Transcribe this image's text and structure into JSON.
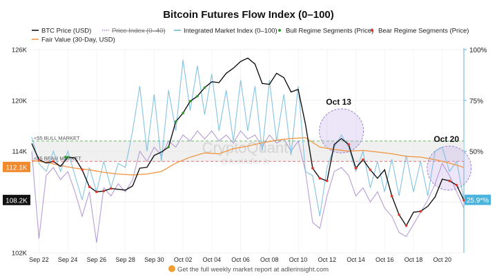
{
  "chart_data": {
    "type": "line",
    "title": "Bitcoin Futures Flow Index (0–100)",
    "legend": [
      {
        "key": "btc",
        "label": "BTC Price (USD)",
        "color": "#111111",
        "style": "line"
      },
      {
        "key": "pidx",
        "label": "Price Index (0–40)",
        "color": "#9b7fc7",
        "style": "dotted",
        "strike": true
      },
      {
        "key": "imi",
        "label": "Integrated Market Index (0–100)",
        "color": "#6fb6d9",
        "style": "line"
      },
      {
        "key": "bull",
        "label": "Bull Regime Segments (Price)",
        "color": "#2e9a2e",
        "style": "dot"
      },
      {
        "key": "bear",
        "label": "Bear Regime Segments (Price)",
        "color": "#e0342c",
        "style": "dot"
      },
      {
        "key": "fv",
        "label": "Fair Value (30-Day, USD)",
        "color": "#f09a4a",
        "style": "line"
      }
    ],
    "x_ticks": [
      "Sep 22",
      "Sep 24",
      "Sep 26",
      "Sep 28",
      "Sep 30",
      "Oct 02",
      "Oct 04",
      "Oct 06",
      "Oct 08",
      "Oct 10",
      "Oct 12",
      "Oct 14",
      "Oct 16",
      "Oct 18",
      "Oct 20"
    ],
    "x_range": [
      "2025-09-21T12:00",
      "2025-10-21T12:00"
    ],
    "y_left": {
      "ticks": [
        102000,
        108000,
        114000,
        120000,
        126000
      ],
      "tick_labels": [
        "102K",
        "108K",
        "114K",
        "120K",
        "126K"
      ],
      "range": [
        102000,
        126000
      ]
    },
    "y_right": {
      "ticks": [
        25,
        50,
        75,
        100
      ],
      "tick_labels": [
        "25%",
        "50%",
        "75%",
        "100%"
      ],
      "range": [
        0,
        100
      ]
    },
    "threshold_lines": [
      {
        "label": "<55 BULL MARKET",
        "value": 55
      },
      {
        "label": "<45 BEAR MARKET",
        "value": 45
      }
    ],
    "annotations": [
      {
        "label": "Oct 13",
        "date": "2025-10-13T00:00"
      },
      {
        "label": "Oct 20",
        "date": "2025-10-20T00:00"
      }
    ],
    "callouts": {
      "fair_value": "112.1K",
      "btc_last": "108.2K",
      "index_last": "25.9*%"
    },
    "watermark": {
      "brand": "CryptoQuant",
      "author": "@AxelAdler Jr"
    },
    "series": {
      "btc": [
        [
          "2025-09-21T12:00",
          114900
        ],
        [
          "2025-09-22T00:00",
          113000
        ],
        [
          "2025-09-22T12:00",
          112600
        ],
        [
          "2025-09-23T00:00",
          112800
        ],
        [
          "2025-09-23T12:00",
          112200
        ],
        [
          "2025-09-24T00:00",
          113300
        ],
        [
          "2025-09-24T12:00",
          113200
        ],
        [
          "2025-09-25T00:00",
          111800
        ],
        [
          "2025-09-25T12:00",
          109800
        ],
        [
          "2025-09-26T00:00",
          109200
        ],
        [
          "2025-09-26T12:00",
          109300
        ],
        [
          "2025-09-27T00:00",
          109600
        ],
        [
          "2025-09-27T12:00",
          109500
        ],
        [
          "2025-09-28T00:00",
          109400
        ],
        [
          "2025-09-28T12:00",
          109900
        ],
        [
          "2025-09-29T00:00",
          112000
        ],
        [
          "2025-09-29T12:00",
          112100
        ],
        [
          "2025-09-30T00:00",
          113500
        ],
        [
          "2025-09-30T12:00",
          113900
        ],
        [
          "2025-10-01T00:00",
          114500
        ],
        [
          "2025-10-01T12:00",
          117500
        ],
        [
          "2025-10-02T00:00",
          118500
        ],
        [
          "2025-10-02T12:00",
          119900
        ],
        [
          "2025-10-03T00:00",
          120500
        ],
        [
          "2025-10-03T12:00",
          121500
        ],
        [
          "2025-10-04T00:00",
          122200
        ],
        [
          "2025-10-04T12:00",
          122100
        ],
        [
          "2025-10-05T00:00",
          123200
        ],
        [
          "2025-10-05T12:00",
          123800
        ],
        [
          "2025-10-06T00:00",
          124600
        ],
        [
          "2025-10-06T12:00",
          125000
        ],
        [
          "2025-10-07T00:00",
          124300
        ],
        [
          "2025-10-07T12:00",
          122000
        ],
        [
          "2025-10-08T00:00",
          121900
        ],
        [
          "2025-10-08T12:00",
          123200
        ],
        [
          "2025-10-09T00:00",
          122700
        ],
        [
          "2025-10-09T12:00",
          121000
        ],
        [
          "2025-10-10T00:00",
          121300
        ],
        [
          "2025-10-10T12:00",
          117200
        ],
        [
          "2025-10-11T00:00",
          112000
        ],
        [
          "2025-10-11T12:00",
          110800
        ],
        [
          "2025-10-12T00:00",
          110500
        ],
        [
          "2025-10-12T12:00",
          114800
        ],
        [
          "2025-10-13T00:00",
          115500
        ],
        [
          "2025-10-13T12:00",
          114800
        ],
        [
          "2025-10-14T00:00",
          112000
        ],
        [
          "2025-10-14T12:00",
          113000
        ],
        [
          "2025-10-15T00:00",
          111800
        ],
        [
          "2025-10-15T12:00",
          110800
        ],
        [
          "2025-10-16T00:00",
          111800
        ],
        [
          "2025-10-16T12:00",
          108700
        ],
        [
          "2025-10-17T00:00",
          106500
        ],
        [
          "2025-10-17T12:00",
          105200
        ],
        [
          "2025-10-18T00:00",
          106800
        ],
        [
          "2025-10-18T12:00",
          106900
        ],
        [
          "2025-10-19T00:00",
          107500
        ],
        [
          "2025-10-19T12:00",
          108600
        ],
        [
          "2025-10-20T00:00",
          110700
        ],
        [
          "2025-10-20T12:00",
          110500
        ],
        [
          "2025-10-21T00:00",
          110000
        ],
        [
          "2025-10-21T12:00",
          108200
        ]
      ],
      "fair_value": [
        [
          "2025-09-21T12:00",
          112900
        ],
        [
          "2025-09-22T12:00",
          112700
        ],
        [
          "2025-09-23T12:00",
          112300
        ],
        [
          "2025-09-24T12:00",
          112000
        ],
        [
          "2025-09-25T12:00",
          111800
        ],
        [
          "2025-09-26T12:00",
          111500
        ],
        [
          "2025-09-27T12:00",
          111300
        ],
        [
          "2025-09-28T12:00",
          111200
        ],
        [
          "2025-09-29T12:00",
          111300
        ],
        [
          "2025-09-30T12:00",
          111600
        ],
        [
          "2025-10-01T12:00",
          112600
        ],
        [
          "2025-10-02T12:00",
          113300
        ],
        [
          "2025-10-03T12:00",
          113800
        ],
        [
          "2025-10-04T12:00",
          113700
        ],
        [
          "2025-10-05T12:00",
          114300
        ],
        [
          "2025-10-06T12:00",
          114600
        ],
        [
          "2025-10-07T12:00",
          115000
        ],
        [
          "2025-10-08T12:00",
          115300
        ],
        [
          "2025-10-09T12:00",
          115500
        ],
        [
          "2025-10-10T12:00",
          115600
        ],
        [
          "2025-10-11T12:00",
          114500
        ],
        [
          "2025-10-12T12:00",
          114200
        ],
        [
          "2025-10-13T12:00",
          114000
        ],
        [
          "2025-10-14T12:00",
          114100
        ],
        [
          "2025-10-15T12:00",
          113900
        ],
        [
          "2025-10-16T12:00",
          113700
        ],
        [
          "2025-10-17T12:00",
          113400
        ],
        [
          "2025-10-18T12:00",
          113300
        ],
        [
          "2025-10-19T12:00",
          113000
        ],
        [
          "2025-10-20T12:00",
          112600
        ],
        [
          "2025-10-21T12:00",
          112100
        ]
      ],
      "imi": [
        [
          "2025-09-21T12:00",
          57
        ],
        [
          "2025-09-22T00:00",
          44
        ],
        [
          "2025-09-22T12:00",
          40
        ],
        [
          "2025-09-23T00:00",
          50
        ],
        [
          "2025-09-23T12:00",
          40
        ],
        [
          "2025-09-24T00:00",
          50
        ],
        [
          "2025-09-24T12:00",
          38
        ],
        [
          "2025-09-25T00:00",
          26
        ],
        [
          "2025-09-25T12:00",
          42
        ],
        [
          "2025-09-26T00:00",
          30
        ],
        [
          "2025-09-26T12:00",
          45
        ],
        [
          "2025-09-27T00:00",
          32
        ],
        [
          "2025-09-27T12:00",
          44
        ],
        [
          "2025-09-28T00:00",
          42
        ],
        [
          "2025-09-28T12:00",
          60
        ],
        [
          "2025-09-29T00:00",
          82
        ],
        [
          "2025-09-29T12:00",
          50
        ],
        [
          "2025-09-30T00:00",
          78
        ],
        [
          "2025-09-30T12:00",
          45
        ],
        [
          "2025-10-01T00:00",
          80
        ],
        [
          "2025-10-01T12:00",
          60
        ],
        [
          "2025-10-02T00:00",
          95
        ],
        [
          "2025-10-02T12:00",
          70
        ],
        [
          "2025-10-03T00:00",
          92
        ],
        [
          "2025-10-03T12:00",
          68
        ],
        [
          "2025-10-04T00:00",
          88
        ],
        [
          "2025-10-04T12:00",
          60
        ],
        [
          "2025-10-05T00:00",
          80
        ],
        [
          "2025-10-05T12:00",
          55
        ],
        [
          "2025-10-06T00:00",
          85
        ],
        [
          "2025-10-06T12:00",
          60
        ],
        [
          "2025-10-07T00:00",
          82
        ],
        [
          "2025-10-07T12:00",
          50
        ],
        [
          "2025-10-08T00:00",
          85
        ],
        [
          "2025-10-08T12:00",
          55
        ],
        [
          "2025-10-09T00:00",
          78
        ],
        [
          "2025-10-09T12:00",
          48
        ],
        [
          "2025-10-10T00:00",
          82
        ],
        [
          "2025-10-10T12:00",
          40
        ],
        [
          "2025-10-11T00:00",
          38
        ],
        [
          "2025-10-11T12:00",
          18
        ],
        [
          "2025-10-12T00:00",
          42
        ],
        [
          "2025-10-12T12:00",
          52
        ],
        [
          "2025-10-13T00:00",
          58
        ],
        [
          "2025-10-13T12:00",
          52
        ],
        [
          "2025-10-14T00:00",
          40
        ],
        [
          "2025-10-14T12:00",
          50
        ],
        [
          "2025-10-15T00:00",
          32
        ],
        [
          "2025-10-15T12:00",
          45
        ],
        [
          "2025-10-16T00:00",
          30
        ],
        [
          "2025-10-16T12:00",
          46
        ],
        [
          "2025-10-17T00:00",
          28
        ],
        [
          "2025-10-17T12:00",
          48
        ],
        [
          "2025-10-18T00:00",
          30
        ],
        [
          "2025-10-18T12:00",
          45
        ],
        [
          "2025-10-19T00:00",
          28
        ],
        [
          "2025-10-19T12:00",
          50
        ],
        [
          "2025-10-20T00:00",
          52
        ],
        [
          "2025-10-20T12:00",
          40
        ],
        [
          "2025-10-21T00:00",
          45
        ],
        [
          "2025-10-21T12:00",
          26
        ]
      ],
      "pidx": [
        [
          "2025-09-21T12:00",
          50
        ],
        [
          "2025-09-22T00:00",
          7
        ],
        [
          "2025-09-22T12:00",
          38
        ],
        [
          "2025-09-23T00:00",
          42
        ],
        [
          "2025-09-23T12:00",
          36
        ],
        [
          "2025-09-24T00:00",
          40
        ],
        [
          "2025-09-24T12:00",
          30
        ],
        [
          "2025-09-25T00:00",
          18
        ],
        [
          "2025-09-25T12:00",
          30
        ],
        [
          "2025-09-26T00:00",
          5
        ],
        [
          "2025-09-26T12:00",
          32
        ],
        [
          "2025-09-27T00:00",
          28
        ],
        [
          "2025-09-27T12:00",
          34
        ],
        [
          "2025-09-28T00:00",
          30
        ],
        [
          "2025-09-28T12:00",
          36
        ],
        [
          "2025-09-29T00:00",
          50
        ],
        [
          "2025-09-29T12:00",
          45
        ],
        [
          "2025-09-30T00:00",
          52
        ],
        [
          "2025-09-30T12:00",
          48
        ],
        [
          "2025-10-01T00:00",
          55
        ],
        [
          "2025-10-01T12:00",
          52
        ],
        [
          "2025-10-02T00:00",
          58
        ],
        [
          "2025-10-02T12:00",
          55
        ],
        [
          "2025-10-03T00:00",
          60
        ],
        [
          "2025-10-03T12:00",
          56
        ],
        [
          "2025-10-04T00:00",
          60
        ],
        [
          "2025-10-04T12:00",
          55
        ],
        [
          "2025-10-05T00:00",
          58
        ],
        [
          "2025-10-05T12:00",
          54
        ],
        [
          "2025-10-06T00:00",
          60
        ],
        [
          "2025-10-06T12:00",
          56
        ],
        [
          "2025-10-07T00:00",
          58
        ],
        [
          "2025-10-07T12:00",
          52
        ],
        [
          "2025-10-08T00:00",
          58
        ],
        [
          "2025-10-08T12:00",
          54
        ],
        [
          "2025-10-09T00:00",
          56
        ],
        [
          "2025-10-09T12:00",
          50
        ],
        [
          "2025-10-10T00:00",
          55
        ],
        [
          "2025-10-10T12:00",
          40
        ],
        [
          "2025-10-11T00:00",
          15
        ],
        [
          "2025-10-11T12:00",
          12
        ],
        [
          "2025-10-12T00:00",
          28
        ],
        [
          "2025-10-12T12:00",
          40
        ],
        [
          "2025-10-13T00:00",
          42
        ],
        [
          "2025-10-13T12:00",
          38
        ],
        [
          "2025-10-14T00:00",
          28
        ],
        [
          "2025-10-14T12:00",
          32
        ],
        [
          "2025-10-15T00:00",
          25
        ],
        [
          "2025-10-15T12:00",
          30
        ],
        [
          "2025-10-16T00:00",
          22
        ],
        [
          "2025-10-16T12:00",
          18
        ],
        [
          "2025-10-17T00:00",
          10
        ],
        [
          "2025-10-17T12:00",
          8
        ],
        [
          "2025-10-18T00:00",
          14
        ],
        [
          "2025-10-18T12:00",
          20
        ],
        [
          "2025-10-19T00:00",
          26
        ],
        [
          "2025-10-19T12:00",
          34
        ],
        [
          "2025-10-20T00:00",
          44
        ],
        [
          "2025-10-20T12:00",
          38
        ],
        [
          "2025-10-21T00:00",
          30
        ],
        [
          "2025-10-21T12:00",
          22
        ]
      ],
      "bull_regime": [
        [
          "2025-09-23T20:00",
          113300
        ],
        [
          "2025-09-24T00:00",
          113300
        ],
        [
          "2025-10-01T00:00",
          114500
        ],
        [
          "2025-10-01T12:00",
          117500
        ],
        [
          "2025-10-02T00:00",
          118500
        ],
        [
          "2025-10-02T12:00",
          119900
        ],
        [
          "2025-10-03T00:00",
          120500
        ],
        [
          "2025-10-03T12:00",
          121500
        ]
      ],
      "bear_regime": [
        [
          "2025-09-22T00:00",
          113000
        ],
        [
          "2025-09-23T00:00",
          112800
        ],
        [
          "2025-09-25T00:00",
          111800
        ],
        [
          "2025-09-25T12:00",
          109800
        ],
        [
          "2025-09-26T00:00",
          109200
        ],
        [
          "2025-09-26T12:00",
          109300
        ],
        [
          "2025-09-27T00:00",
          109600
        ],
        [
          "2025-10-11T00:00",
          112000
        ],
        [
          "2025-10-11T12:00",
          110800
        ],
        [
          "2025-10-12T00:00",
          110500
        ],
        [
          "2025-10-13T12:00",
          114800
        ],
        [
          "2025-10-14T00:00",
          112000
        ],
        [
          "2025-10-14T12:00",
          113000
        ],
        [
          "2025-10-15T00:00",
          111800
        ],
        [
          "2025-10-16T12:00",
          108700
        ],
        [
          "2025-10-17T00:00",
          106500
        ],
        [
          "2025-10-17T12:00",
          105200
        ],
        [
          "2025-10-18T12:00",
          106900
        ],
        [
          "2025-10-20T12:00",
          110500
        ],
        [
          "2025-10-21T00:00",
          110000
        ],
        [
          "2025-10-21T12:00",
          108200
        ]
      ]
    }
  },
  "footer": {
    "text": "Get the full weekly market report at adlerinsight.com"
  }
}
